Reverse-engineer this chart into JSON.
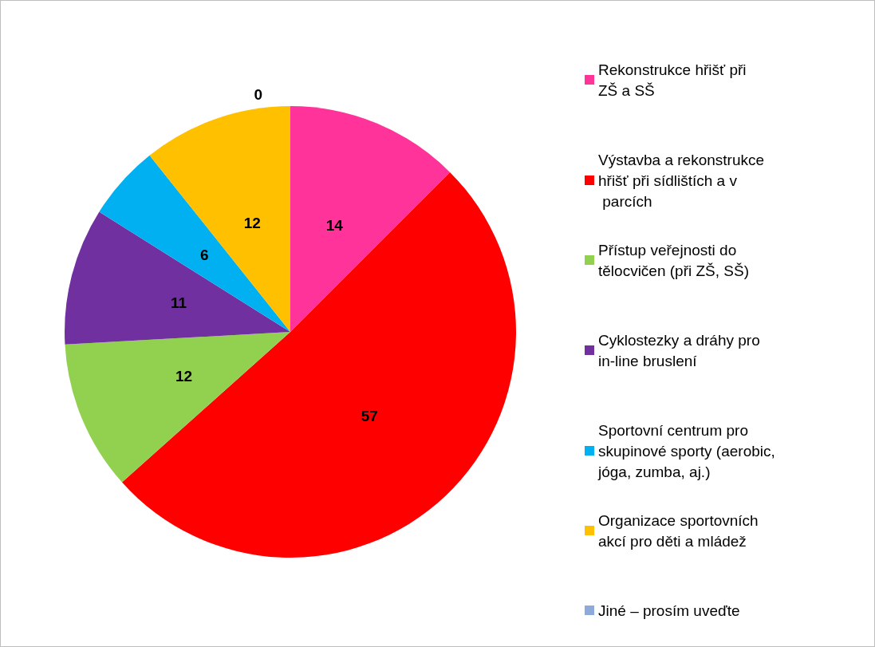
{
  "chart_data": {
    "type": "pie",
    "categories": [
      "Rekonstrukce hřišť při ZŠ a SŠ",
      "Výstavba a rekonstrukce hřišť při sídlištích a v parcích",
      "Přístup veřejnosti do tělocvičen (při ZŠ, SŠ)",
      "Cyklostezky a dráhy pro in-line bruslení",
      "Sportovní centrum pro skupinové sporty (aerobic, jóga, zumba, aj.)",
      "Organizace sportovních akcí pro děti a mládež",
      "Jiné – prosím uveďte"
    ],
    "values": [
      14,
      57,
      12,
      11,
      6,
      12,
      0
    ],
    "colors": [
      "#ff3399",
      "#ff0000",
      "#92d050",
      "#7030a0",
      "#00b0f0",
      "#ffc000",
      "#8eaadb"
    ],
    "value_labels": [
      "14",
      "57",
      "12",
      "11",
      "6",
      "12",
      "0"
    ],
    "legend": "right"
  }
}
